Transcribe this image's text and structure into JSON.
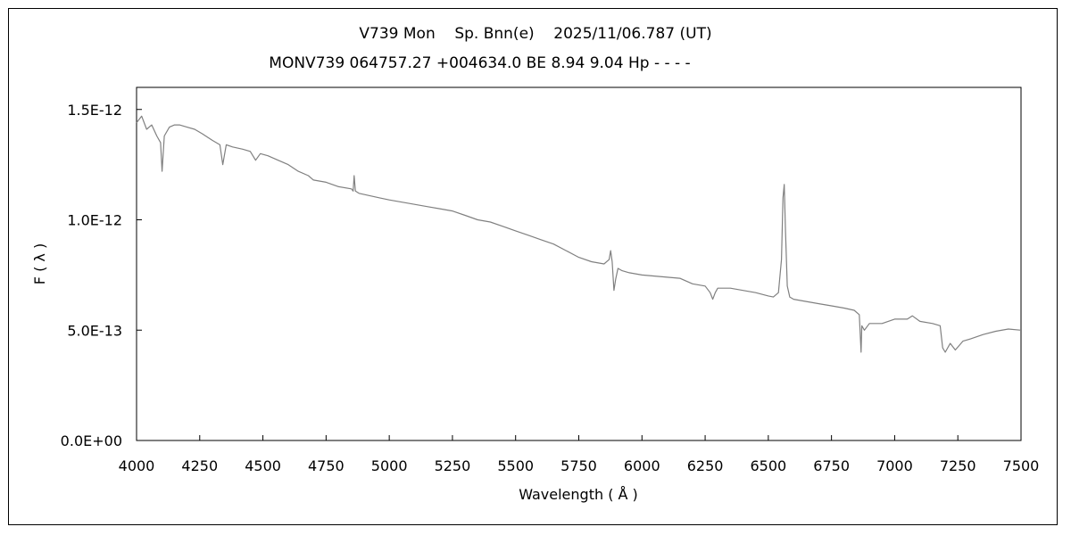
{
  "chart_data": {
    "type": "line",
    "title_line1": "V739 Mon    Sp. Bnn(e)    2025/11/06.787 (UT)",
    "title_line2": "MONV739 064757.27 +004634.0 BE 8.94 9.04 Hp - - - -",
    "xlabel": "Wavelength ( Å )",
    "ylabel": "F ( λ )",
    "xlim": [
      4000,
      7500
    ],
    "ylim": [
      0,
      1.6e-12
    ],
    "xticks": [
      4000,
      4250,
      4500,
      4750,
      5000,
      5250,
      5500,
      5750,
      6000,
      6250,
      6500,
      6750,
      7000,
      7250,
      7500
    ],
    "xtick_labels": [
      "4000",
      "4250",
      "4500",
      "4750",
      "5000",
      "5250",
      "5500",
      "5750",
      "6000",
      "6250",
      "6500",
      "6750",
      "7000",
      "7250",
      "7500"
    ],
    "yticks": [
      0,
      5e-13,
      1e-12,
      1.5e-12
    ],
    "ytick_labels": [
      "0.0E+00",
      "5.0E-13",
      "1.0E-12",
      "1.5E-12"
    ],
    "grid": false,
    "line_color": "#808080",
    "series": [
      {
        "x": [
          4000,
          4020,
          4040,
          4060,
          4080,
          4095,
          4101,
          4110,
          4130,
          4150,
          4170,
          4200,
          4230,
          4260,
          4300,
          4330,
          4341,
          4355,
          4380,
          4420,
          4450,
          4471,
          4490,
          4520,
          4560,
          4600,
          4640,
          4680,
          4700,
          4750,
          4800,
          4850,
          4857,
          4861,
          4866,
          4880,
          4920,
          4960,
          5000,
          5050,
          5100,
          5150,
          5200,
          5250,
          5300,
          5350,
          5400,
          5450,
          5500,
          5550,
          5600,
          5650,
          5700,
          5750,
          5800,
          5850,
          5870,
          5876,
          5882,
          5889,
          5896,
          5905,
          5920,
          5950,
          6000,
          6050,
          6100,
          6150,
          6200,
          6250,
          6270,
          6280,
          6290,
          6300,
          6350,
          6400,
          6450,
          6500,
          6520,
          6540,
          6552,
          6558,
          6563,
          6568,
          6575,
          6585,
          6600,
          6650,
          6700,
          6750,
          6800,
          6840,
          6860,
          6867,
          6870,
          6880,
          6900,
          6950,
          7000,
          7050,
          7070,
          7100,
          7150,
          7180,
          7190,
          7200,
          7220,
          7240,
          7270,
          7300,
          7350,
          7400,
          7450,
          7500
        ],
        "y": [
          1.44e-12,
          1.47e-12,
          1.41e-12,
          1.43e-12,
          1.38e-12,
          1.35e-12,
          1.22e-12,
          1.38e-12,
          1.42e-12,
          1.43e-12,
          1.43e-12,
          1.42e-12,
          1.41e-12,
          1.39e-12,
          1.36e-12,
          1.34e-12,
          1.25e-12,
          1.34e-12,
          1.33e-12,
          1.32e-12,
          1.31e-12,
          1.27e-12,
          1.3e-12,
          1.29e-12,
          1.27e-12,
          1.25e-12,
          1.22e-12,
          1.2e-12,
          1.18e-12,
          1.17e-12,
          1.15e-12,
          1.14e-12,
          1.13e-12,
          1.2e-12,
          1.13e-12,
          1.12e-12,
          1.11e-12,
          1.1e-12,
          1.09e-12,
          1.08e-12,
          1.07e-12,
          1.06e-12,
          1.05e-12,
          1.04e-12,
          1.02e-12,
          1e-12,
          9.9e-13,
          9.7e-13,
          9.5e-13,
          9.3e-13,
          9.1e-13,
          8.9e-13,
          8.6e-13,
          8.3e-13,
          8.1e-13,
          8e-13,
          8.2e-13,
          8.6e-13,
          8.1e-13,
          6.8e-13,
          7.3e-13,
          7.8e-13,
          7.7e-13,
          7.6e-13,
          7.5e-13,
          7.45e-13,
          7.4e-13,
          7.35e-13,
          7.1e-13,
          7e-13,
          6.7e-13,
          6.4e-13,
          6.7e-13,
          6.9e-13,
          6.9e-13,
          6.8e-13,
          6.7e-13,
          6.55e-13,
          6.5e-13,
          6.7e-13,
          8.2e-13,
          1.1e-12,
          1.16e-12,
          9.5e-13,
          7e-13,
          6.5e-13,
          6.4e-13,
          6.3e-13,
          6.2e-13,
          6.1e-13,
          6e-13,
          5.9e-13,
          5.7e-13,
          4e-13,
          5.2e-13,
          5e-13,
          5.3e-13,
          5.3e-13,
          5.5e-13,
          5.5e-13,
          5.65e-13,
          5.4e-13,
          5.3e-13,
          5.2e-13,
          4.2e-13,
          4e-13,
          4.4e-13,
          4.1e-13,
          4.5e-13,
          4.6e-13,
          4.8e-13,
          4.95e-13,
          5.05e-13,
          5e-13
        ]
      }
    ]
  }
}
